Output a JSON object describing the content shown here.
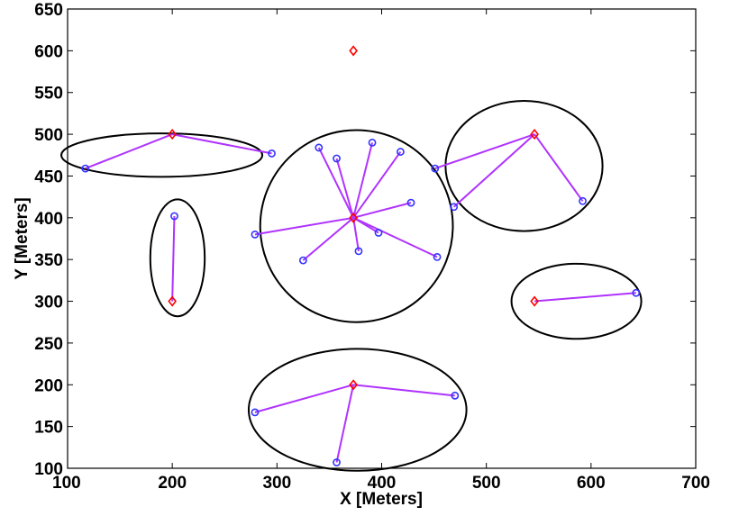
{
  "chart_data": {
    "type": "scatter",
    "xlabel": "X [Meters]",
    "ylabel": "Y [Meters]",
    "xlim": [
      100,
      700
    ],
    "ylim": [
      100,
      650
    ],
    "x_ticks": [
      "100",
      "200",
      "300",
      "400",
      "500",
      "600",
      "700"
    ],
    "y_ticks": [
      "100",
      "150",
      "200",
      "250",
      "300",
      "350",
      "400",
      "450",
      "500",
      "550",
      "600",
      "650"
    ],
    "grid": false,
    "colors": {
      "head": "#ff0000",
      "member": "#3333ff",
      "link": "#b033ff",
      "cluster_boundary": "#000000"
    },
    "series": [
      {
        "marker": "diamond",
        "points": [
          [
            200,
            500
          ],
          [
            200,
            300
          ],
          [
            373,
            400
          ],
          [
            546,
            500
          ],
          [
            546,
            300
          ],
          [
            373,
            200
          ],
          [
            373,
            600
          ]
        ]
      },
      {
        "marker": "circle",
        "points": [
          [
            117,
            459
          ],
          [
            295,
            477
          ],
          [
            202,
            402
          ],
          [
            340,
            484
          ],
          [
            357,
            471
          ],
          [
            391,
            490
          ],
          [
            418,
            479
          ],
          [
            451,
            459
          ],
          [
            469,
            413
          ],
          [
            592,
            420
          ],
          [
            428,
            418
          ],
          [
            397,
            382
          ],
          [
            279,
            380
          ],
          [
            325,
            349
          ],
          [
            378,
            360
          ],
          [
            453,
            353
          ],
          [
            643,
            310
          ],
          [
            279,
            167
          ],
          [
            470,
            187
          ],
          [
            357,
            107
          ]
        ]
      }
    ],
    "links": [
      {
        "head": [
          200,
          500
        ],
        "members": [
          [
            117,
            459
          ],
          [
            295,
            477
          ]
        ]
      },
      {
        "head": [
          200,
          300
        ],
        "members": [
          [
            202,
            402
          ]
        ]
      },
      {
        "head": [
          373,
          400
        ],
        "members": [
          [
            340,
            484
          ],
          [
            357,
            471
          ],
          [
            391,
            490
          ],
          [
            418,
            479
          ],
          [
            428,
            418
          ],
          [
            397,
            382
          ],
          [
            279,
            380
          ],
          [
            325,
            349
          ],
          [
            378,
            360
          ],
          [
            453,
            353
          ]
        ]
      },
      {
        "head": [
          546,
          500
        ],
        "members": [
          [
            451,
            459
          ],
          [
            469,
            413
          ],
          [
            592,
            420
          ]
        ]
      },
      {
        "head": [
          546,
          300
        ],
        "members": [
          [
            643,
            310
          ]
        ]
      },
      {
        "head": [
          373,
          200
        ],
        "members": [
          [
            279,
            167
          ],
          [
            470,
            187
          ],
          [
            357,
            107
          ]
        ]
      }
    ],
    "clusters": [
      {
        "center": [
          190,
          475
        ],
        "radii": [
          96,
          26
        ]
      },
      {
        "center": [
          205,
          352
        ],
        "radii": [
          26,
          70
        ]
      },
      {
        "center": [
          376,
          390
        ],
        "radii": [
          92,
          115
        ]
      },
      {
        "center": [
          536,
          462
        ],
        "radii": [
          75,
          78
        ]
      },
      {
        "center": [
          586,
          300
        ],
        "radii": [
          62,
          45
        ]
      },
      {
        "center": [
          377,
          170
        ],
        "radii": [
          104,
          73
        ]
      }
    ]
  }
}
